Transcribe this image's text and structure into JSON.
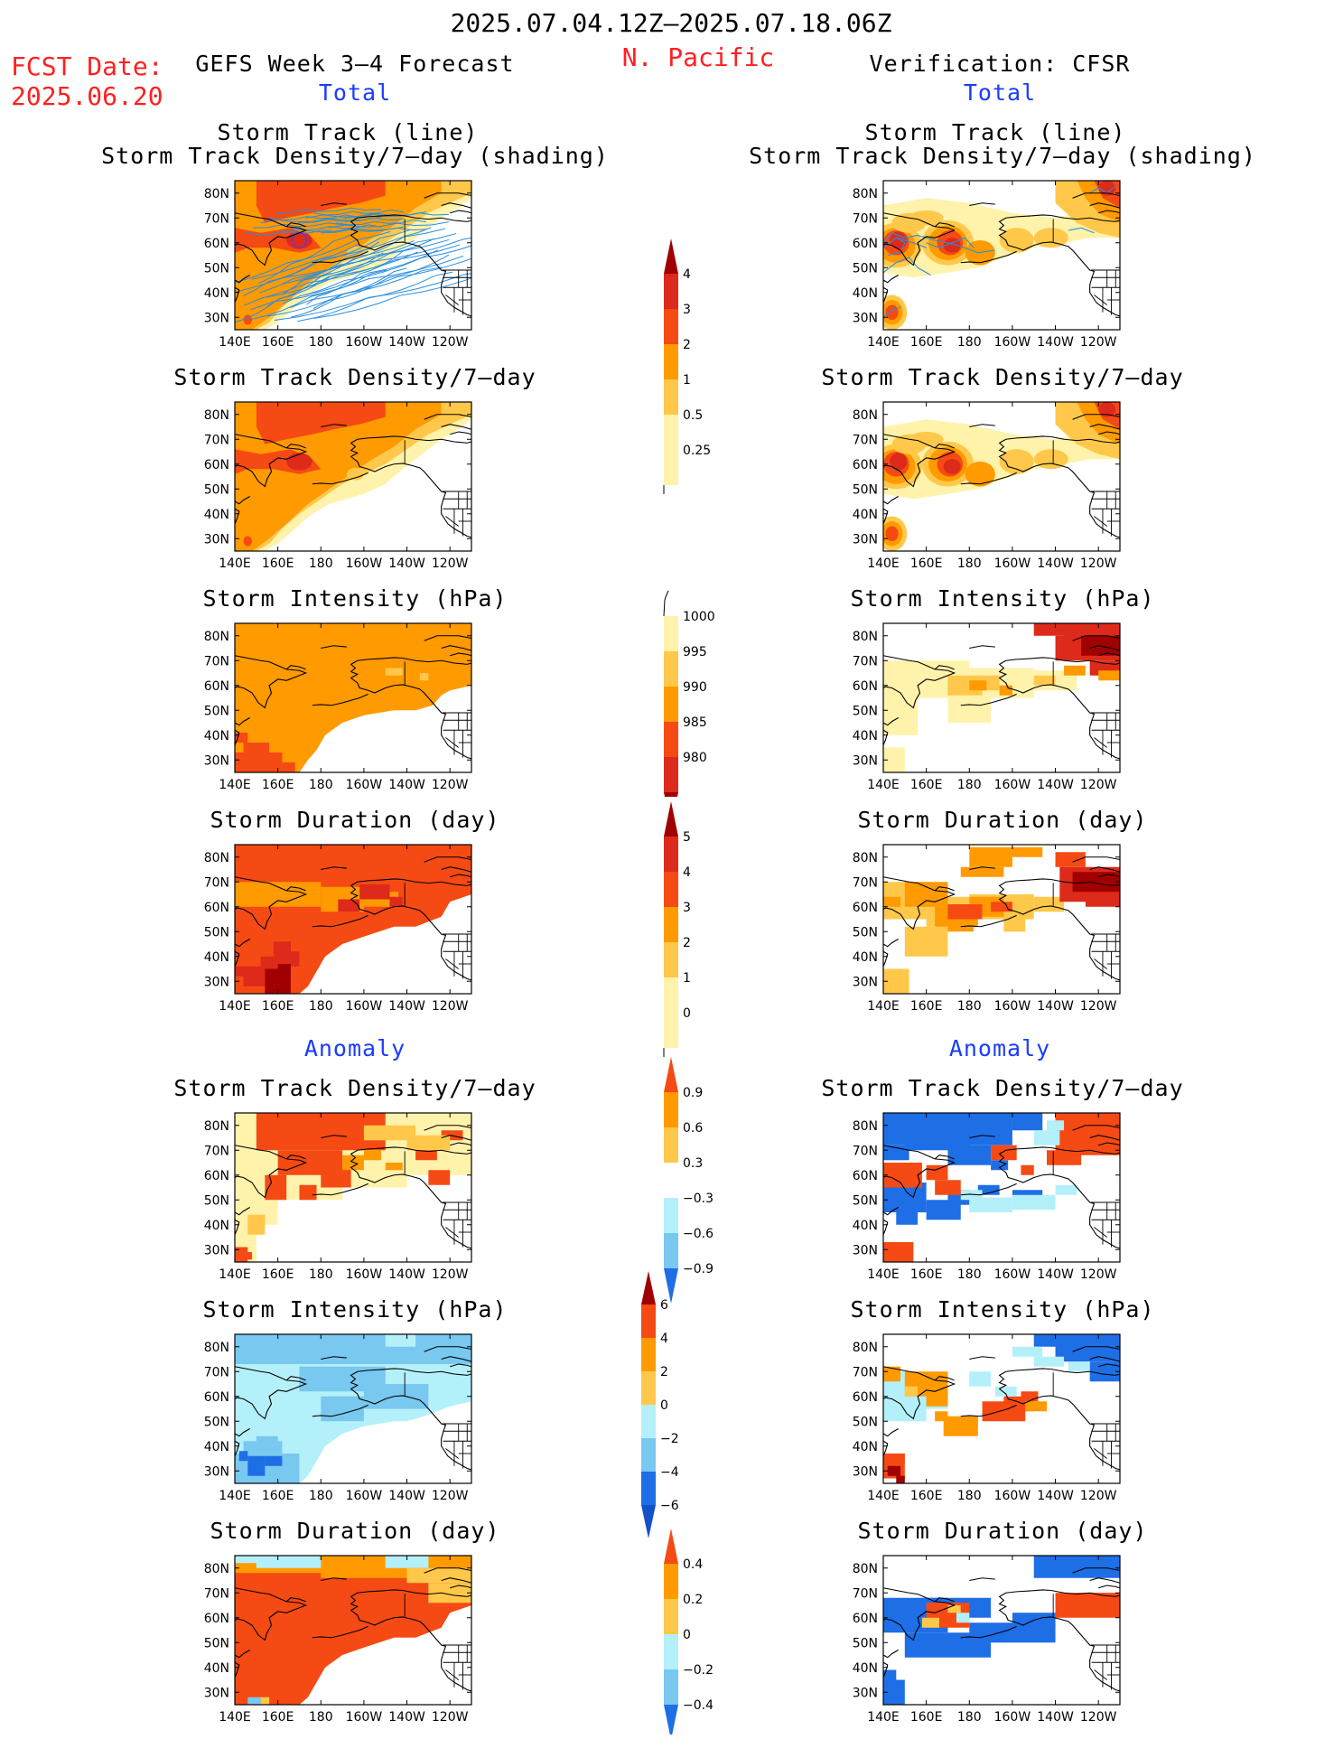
{
  "header": {
    "date_range": "2025.07.04.12Z–2025.07.18.06Z",
    "region": "N. Pacific",
    "fcst_label": "FCST Date:",
    "fcst_date": "2025.06.20",
    "left_title": "GEFS Week 3–4 Forecast",
    "right_title": "Verification: CFSR",
    "total_label": "Total",
    "anomaly_label": "Anomaly"
  },
  "panels": {
    "track_line": "Storm Track (line)",
    "track_shade": "Storm Track Density/7–day (shading)",
    "density": "Storm Track Density/7–day",
    "intensity": "Storm Intensity (hPa)",
    "duration": "Storm Duration (day)"
  },
  "axes": {
    "x_ticks": [
      "140E",
      "160E",
      "180",
      "160W",
      "140W",
      "120W"
    ],
    "y_ticks": [
      "80N",
      "70N",
      "60N",
      "50N",
      "40N",
      "30N"
    ]
  },
  "colorbars": {
    "density_total": [
      "4",
      "3",
      "2",
      "1",
      "0.5",
      "0.25"
    ],
    "intensity_total": [
      "1000",
      "995",
      "990",
      "985",
      "980"
    ],
    "duration_total": [
      "5",
      "4",
      "3",
      "2",
      "1",
      "0"
    ],
    "density_anom": [
      "0.9",
      "0.6",
      "0.3",
      "−0.3",
      "−0.6",
      "−0.9"
    ],
    "intensity_anom": [
      "6",
      "4",
      "2",
      "0",
      "−2",
      "−4",
      "−6"
    ],
    "duration_anom": [
      "0.4",
      "0.2",
      "0",
      "−0.2",
      "−0.4"
    ]
  },
  "colors": {
    "dark_red": "#a00000",
    "red": "#dd2a1a",
    "red_orange": "#f54a14",
    "orange": "#ff9a00",
    "light_orange": "#ffc84a",
    "pale_yellow": "#fff2aa",
    "light_blue": "#b4f0fa",
    "mid_blue": "#78c8f0",
    "blue": "#1e6ee6",
    "dark_blue": "#1450c8",
    "track": "#2a8ee0"
  }
}
